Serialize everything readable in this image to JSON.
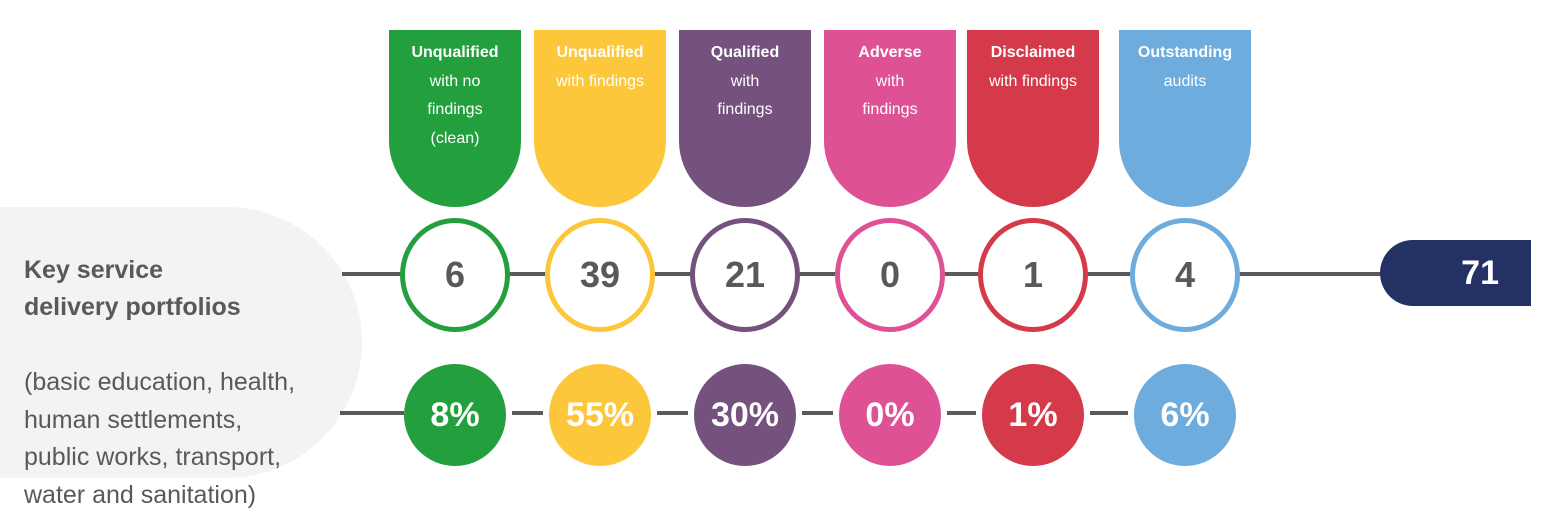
{
  "portfolio": {
    "title": "Key service\ndelivery portfolios",
    "description": "(basic education, health,\nhuman settlements,\npublic works, transport,\nwater and sanitation)"
  },
  "categories": [
    {
      "title": "Unqualified",
      "subtitle": "with no\nfindings\n(clean)",
      "count": "6",
      "percent": "8%",
      "color": "#23a03d"
    },
    {
      "title": "Unqualified",
      "subtitle": "with findings",
      "count": "39",
      "percent": "55%",
      "color": "#fcc73a"
    },
    {
      "title": "Qualified",
      "subtitle": "with\nfindings",
      "count": "21",
      "percent": "30%",
      "color": "#75517e"
    },
    {
      "title": "Adverse",
      "subtitle": "with\nfindings",
      "count": "0",
      "percent": "0%",
      "color": "#de5295"
    },
    {
      "title": "Disclaimed",
      "subtitle": "with findings",
      "count": "1",
      "percent": "1%",
      "color": "#d53a4b"
    },
    {
      "title": "Outstanding",
      "subtitle": "audits",
      "count": "4",
      "percent": "6%",
      "color": "#6dacdc"
    }
  ],
  "total": "71"
}
